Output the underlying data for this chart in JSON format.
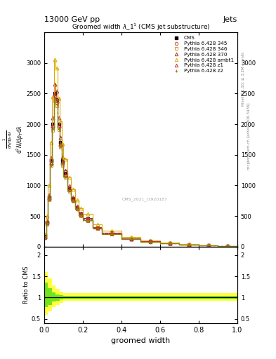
{
  "title": "13000 GeV pp",
  "title_right": "Jets",
  "plot_title": "Groomed width $\\lambda\\_1^1$ (CMS jet substructure)",
  "xlabel": "groomed width",
  "ylabel_ratio": "Ratio to CMS",
  "right_label": "Rivet 3.1.10; ≥ 3.2M events",
  "right_label2": "mcplots.cern.ch [arXiv:1306.3436]",
  "watermark": "CMS_2021_I1920187",
  "cms_label": "CMS",
  "x_bins": [
    0.0,
    0.01,
    0.02,
    0.03,
    0.04,
    0.05,
    0.06,
    0.07,
    0.08,
    0.09,
    0.1,
    0.12,
    0.14,
    0.16,
    0.18,
    0.2,
    0.25,
    0.3,
    0.4,
    0.5,
    0.6,
    0.7,
    0.8,
    0.9,
    1.0
  ],
  "cms_y": [
    180,
    400,
    800,
    1400,
    2000,
    2500,
    2400,
    2000,
    1700,
    1400,
    1200,
    950,
    780,
    640,
    530,
    450,
    310,
    220,
    130,
    85,
    55,
    35,
    20,
    10
  ],
  "p345_y": [
    150,
    380,
    780,
    1350,
    1950,
    2450,
    2350,
    1950,
    1650,
    1350,
    1150,
    920,
    750,
    620,
    515,
    430,
    300,
    210,
    125,
    82,
    53,
    33,
    19,
    9
  ],
  "p346_y": [
    140,
    360,
    760,
    1320,
    1900,
    2380,
    2300,
    1910,
    1620,
    1330,
    1130,
    900,
    740,
    610,
    505,
    425,
    295,
    205,
    122,
    80,
    51,
    32,
    18,
    9
  ],
  "p370_y": [
    160,
    420,
    840,
    1450,
    2100,
    2650,
    2540,
    2100,
    1780,
    1460,
    1250,
    990,
    810,
    665,
    550,
    465,
    320,
    225,
    135,
    88,
    57,
    36,
    21,
    10
  ],
  "pambt1_y": [
    200,
    500,
    1000,
    1700,
    2450,
    3050,
    2920,
    2420,
    2050,
    1680,
    1430,
    1130,
    930,
    760,
    630,
    530,
    365,
    255,
    153,
    100,
    64,
    40,
    23,
    11
  ],
  "pz1_y": [
    155,
    390,
    790,
    1370,
    1980,
    2490,
    2390,
    1980,
    1680,
    1380,
    1180,
    935,
    765,
    630,
    522,
    437,
    302,
    212,
    126,
    83,
    54,
    34,
    19,
    9
  ],
  "pz2_y": [
    145,
    370,
    770,
    1330,
    1920,
    2410,
    2320,
    1925,
    1635,
    1345,
    1145,
    910,
    748,
    616,
    510,
    428,
    297,
    207,
    123,
    81,
    52,
    33,
    19,
    9
  ],
  "colors": {
    "cms": "#000000",
    "p345": "#cc4444",
    "p346": "#cc9933",
    "p370": "#aa3333",
    "pambt1": "#ddaa00",
    "pz1": "#bb3333",
    "pz2": "#888800"
  },
  "ratio_x_edges": [
    0.0,
    0.02,
    0.04,
    0.06,
    0.08,
    0.1,
    0.15,
    0.2,
    0.3,
    0.4,
    0.5,
    0.6,
    0.7,
    0.8,
    0.9,
    1.0
  ],
  "ratio_green_low": [
    0.78,
    0.83,
    0.9,
    0.93,
    0.95,
    0.97,
    0.97,
    0.97,
    0.97,
    0.97,
    0.97,
    0.97,
    0.97,
    0.97,
    0.97
  ],
  "ratio_green_high": [
    1.35,
    1.22,
    1.12,
    1.08,
    1.06,
    1.04,
    1.04,
    1.04,
    1.04,
    1.04,
    1.04,
    1.04,
    1.04,
    1.04,
    1.04
  ],
  "ratio_yellow_low": [
    0.6,
    0.68,
    0.78,
    0.83,
    0.88,
    0.92,
    0.92,
    0.92,
    0.92,
    0.92,
    0.92,
    0.92,
    0.92,
    0.92,
    0.92
  ],
  "ratio_yellow_high": [
    1.6,
    1.45,
    1.28,
    1.2,
    1.14,
    1.1,
    1.1,
    1.1,
    1.1,
    1.1,
    1.1,
    1.1,
    1.1,
    1.1,
    1.1
  ],
  "ylim_main": [
    0,
    3500
  ],
  "yticks_main": [
    0,
    500,
    1000,
    1500,
    2000,
    2500,
    3000
  ],
  "ylim_ratio": [
    0.4,
    2.2
  ],
  "yticks_ratio": [
    0.5,
    1.0,
    1.5,
    2.0
  ]
}
